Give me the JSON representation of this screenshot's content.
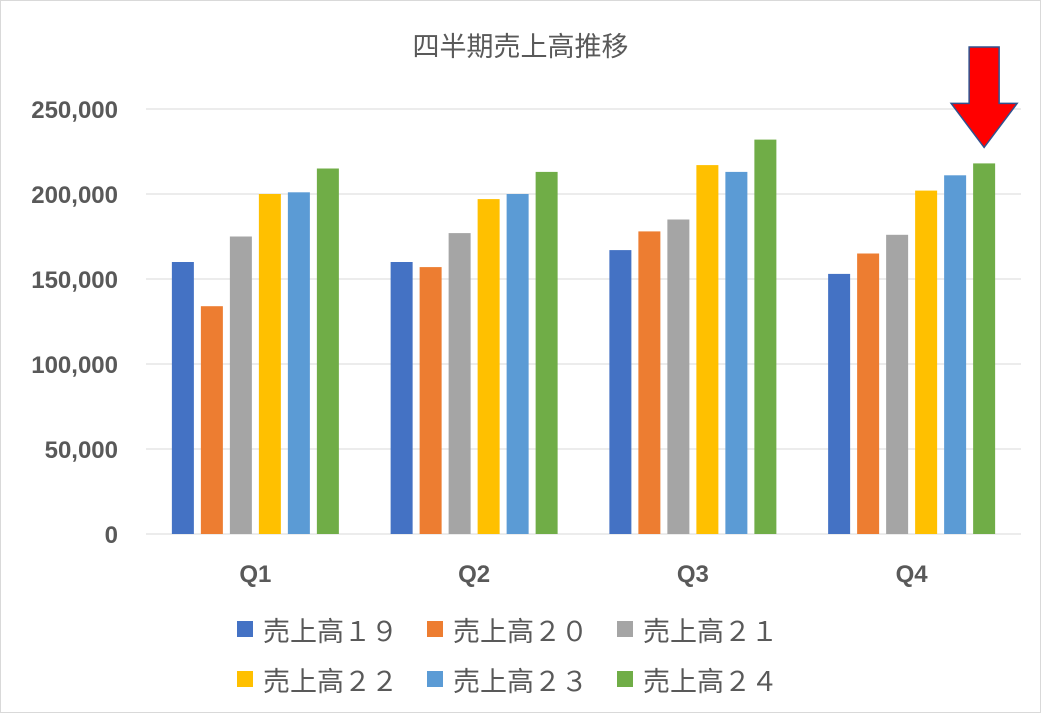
{
  "chart_data": {
    "type": "bar",
    "title": "四半期売上高推移",
    "categories": [
      "Q1",
      "Q2",
      "Q3",
      "Q4"
    ],
    "ylim": [
      0,
      250000
    ],
    "yticks": [
      0,
      50000,
      100000,
      150000,
      200000,
      250000
    ],
    "ytick_labels": [
      "0",
      "50,000",
      "100,000",
      "150,000",
      "200,000",
      "250,000"
    ],
    "grid": true,
    "legend_position": "bottom",
    "series": [
      {
        "name": "売上高１９",
        "color": "#4472C4",
        "values": [
          160000,
          160000,
          167000,
          153000
        ]
      },
      {
        "name": "売上高２０",
        "color": "#ED7D31",
        "values": [
          134000,
          157000,
          178000,
          165000
        ]
      },
      {
        "name": "売上高２１",
        "color": "#A5A5A5",
        "values": [
          175000,
          177000,
          185000,
          176000
        ]
      },
      {
        "name": "売上高２２",
        "color": "#FFC000",
        "values": [
          200000,
          197000,
          217000,
          202000
        ]
      },
      {
        "name": "売上高２３",
        "color": "#5B9BD5",
        "values": [
          201000,
          200000,
          213000,
          211000
        ]
      },
      {
        "name": "売上高２４",
        "color": "#70AD47",
        "values": [
          215000,
          213000,
          232000,
          218000
        ]
      }
    ],
    "annotation": {
      "type": "arrow",
      "icon": "down-arrow-icon",
      "color": "#FF0000",
      "points_to": {
        "category": "Q4",
        "series": "売上高２４"
      }
    }
  }
}
